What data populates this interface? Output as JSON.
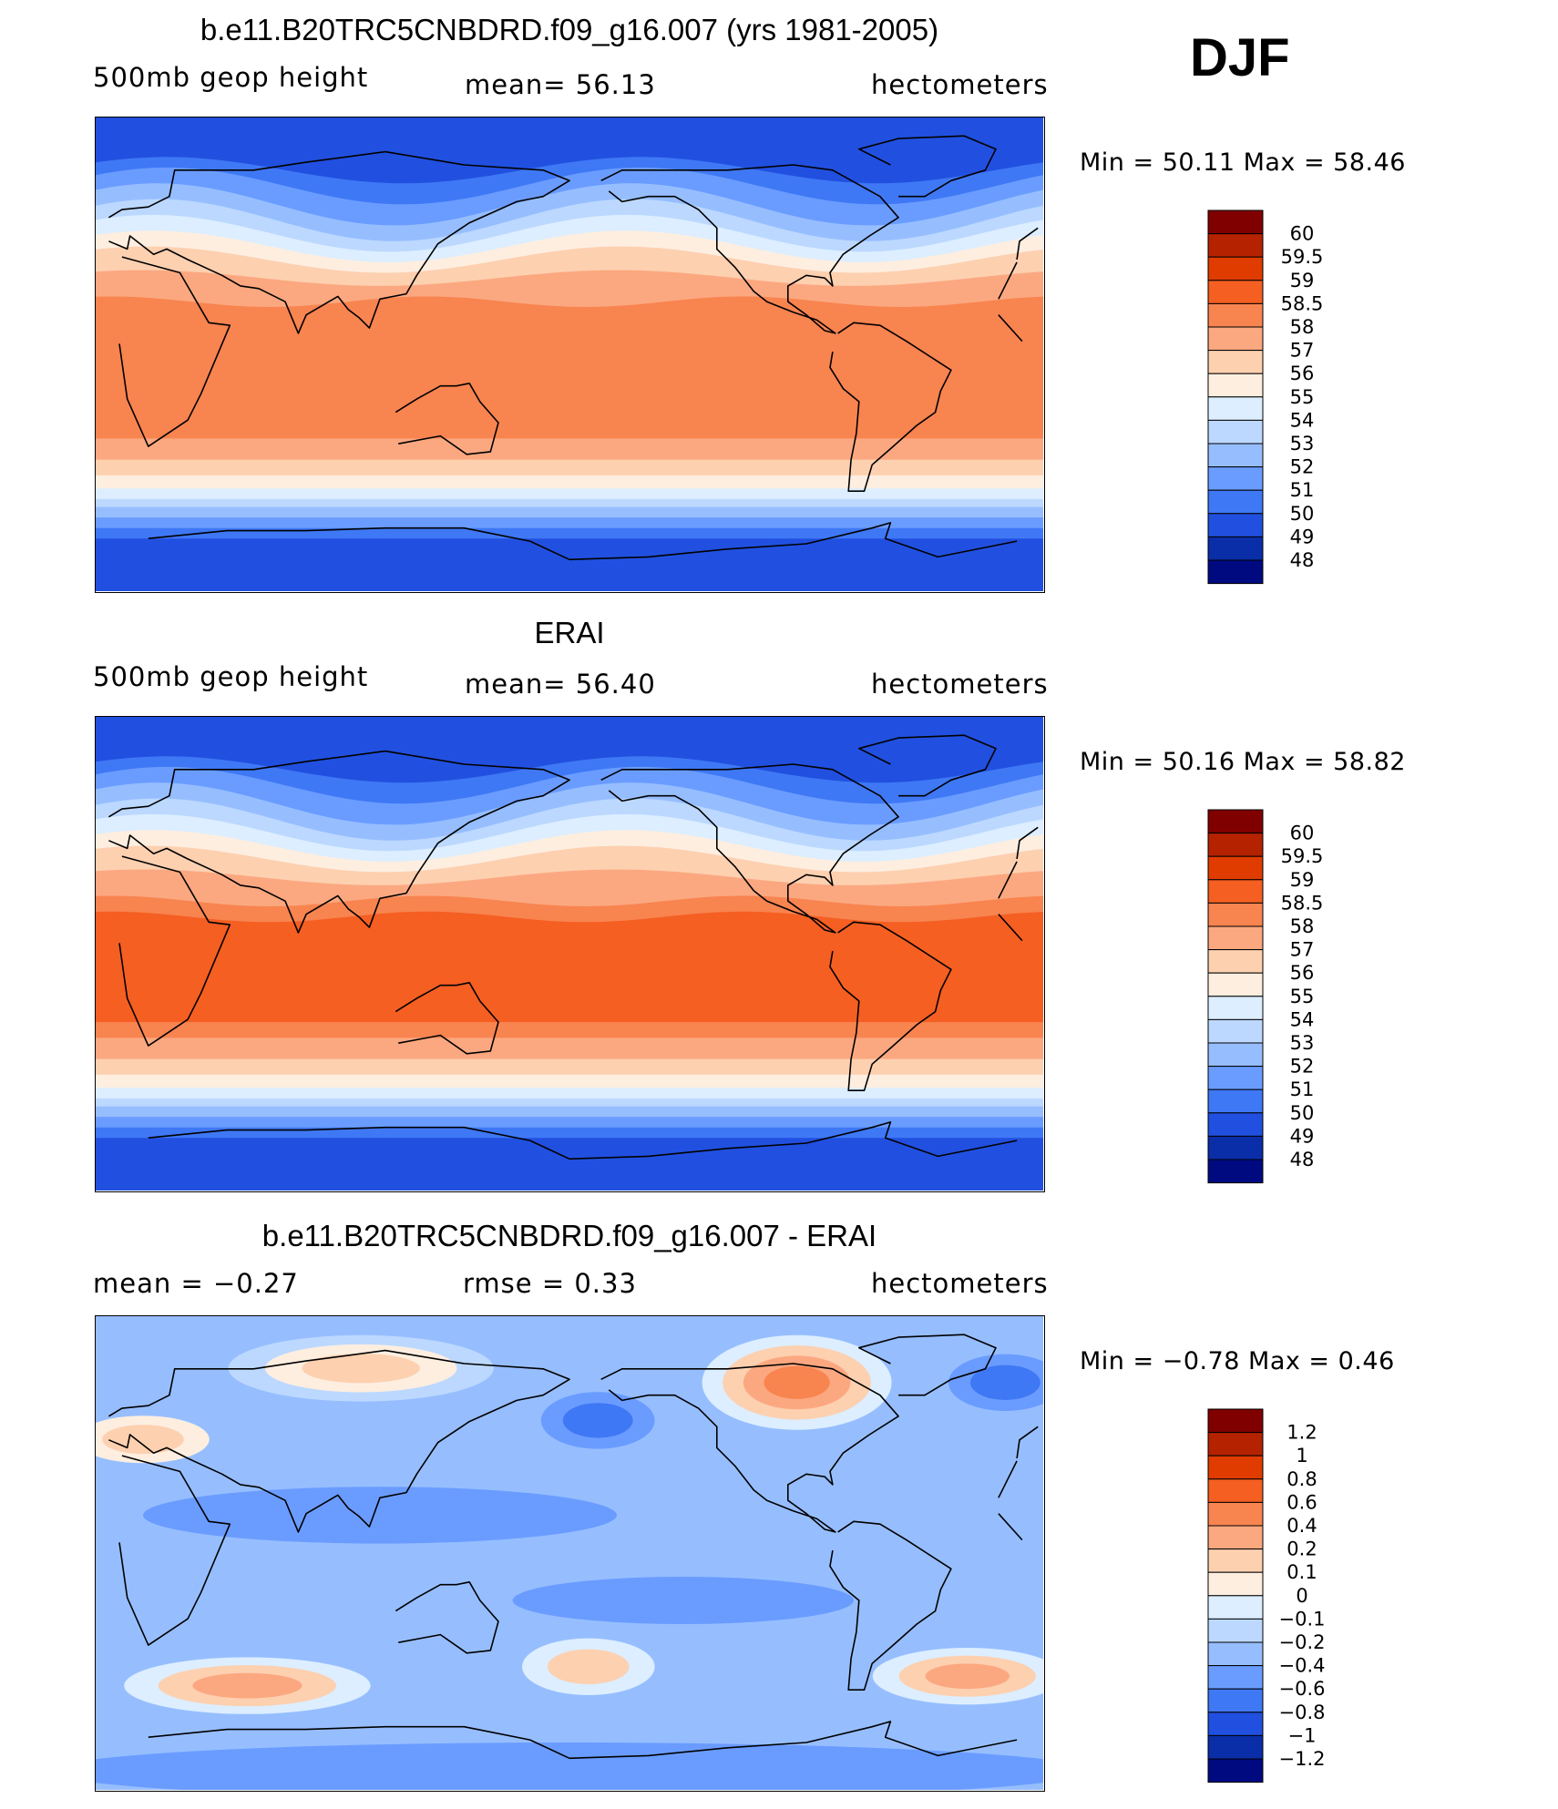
{
  "season": "DJF",
  "panels": [
    {
      "title": "b.e11.B20TRC5CNBDRD.f09_g16.007 (yrs 1981-2005)",
      "left": "500mb  geop  height",
      "middle": "mean=   56.13",
      "right": "hectometers",
      "minmax": "Min  =     50.11  Max  =     58.46",
      "levels": [
        "60",
        "59.5",
        "59",
        "58.5",
        "58",
        "57",
        "56",
        "55",
        "54",
        "53",
        "52",
        "51",
        "50",
        "49",
        "48"
      ],
      "colors": [
        "#800000",
        "#b52200",
        "#e03c00",
        "#f55f22",
        "#f88450",
        "#fba880",
        "#fdd0b0",
        "#fdeee0",
        "#dceeff",
        "#bcd8ff",
        "#96beff",
        "#6a9cff",
        "#3f78f5",
        "#2150e0",
        "#0a2ea8",
        "#000a80"
      ],
      "chart_data": {
        "type": "heatmap",
        "variable": "500mb geop height",
        "units": "hectometers",
        "mean": 56.13,
        "min": 50.11,
        "max": 58.46
      }
    },
    {
      "title": "ERAI",
      "left": "500mb  geop  height",
      "middle": "mean=   56.40",
      "right": "hectometers",
      "minmax": "Min  =     50.16  Max  =     58.82",
      "levels": [
        "60",
        "59.5",
        "59",
        "58.5",
        "58",
        "57",
        "56",
        "55",
        "54",
        "53",
        "52",
        "51",
        "50",
        "49",
        "48"
      ],
      "colors": [
        "#800000",
        "#b52200",
        "#e03c00",
        "#f55f22",
        "#f88450",
        "#fba880",
        "#fdd0b0",
        "#fdeee0",
        "#dceeff",
        "#bcd8ff",
        "#96beff",
        "#6a9cff",
        "#3f78f5",
        "#2150e0",
        "#0a2ea8",
        "#000a80"
      ],
      "chart_data": {
        "type": "heatmap",
        "variable": "500mb geop height",
        "units": "hectometers",
        "mean": 56.4,
        "min": 50.16,
        "max": 58.82
      }
    },
    {
      "title": "b.e11.B20TRC5CNBDRD.f09_g16.007 - ERAI",
      "left": "mean  =    −0.27",
      "middle": "rmse  =     0.33",
      "right": "hectometers",
      "minmax": "Min  =   −0.78  Max  =     0.46",
      "levels": [
        "1.2",
        "1",
        "0.8",
        "0.6",
        "0.4",
        "0.2",
        "0.1",
        "0",
        "−0.1",
        "−0.2",
        "−0.4",
        "−0.6",
        "−0.8",
        "−1",
        "−1.2"
      ],
      "colors": [
        "#800000",
        "#b52200",
        "#e03c00",
        "#f55f22",
        "#f88450",
        "#fba880",
        "#fdd0b0",
        "#fdeee0",
        "#dceeff",
        "#bcd8ff",
        "#96beff",
        "#6a9cff",
        "#3f78f5",
        "#2150e0",
        "#0a2ea8",
        "#000a80"
      ],
      "chart_data": {
        "type": "heatmap",
        "units": "hectometers",
        "mean": -0.27,
        "rmse": 0.33,
        "min": -0.78,
        "max": 0.46
      }
    }
  ]
}
